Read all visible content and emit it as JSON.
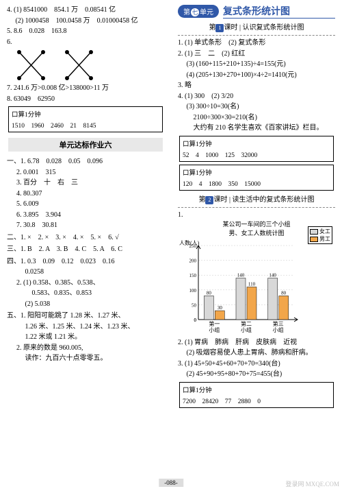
{
  "leftCol": {
    "top": [
      "4. (1) 8541000　854.1 万　0.08541 亿",
      "　 (2) 1000458　100.0458 万　0.01000458 亿",
      "5. 8.6　0.028　163.8",
      "6."
    ],
    "afterCross": [
      "7. 241.6 万>0.008 亿>138000>11 万",
      "8. 63049　62950"
    ],
    "box1": {
      "title": "口算1分钟",
      "vals": "1510　1960　2460　21　8145"
    },
    "unitBar": "单元达标作业六",
    "sec1": {
      "head": "一、",
      "items": [
        "1. 6.78　0.028　0.05　0.096",
        "2. 0.001　315",
        "3. 百分　十　右　三",
        "4. 80.307",
        "5. 6.009",
        "6. 3.895　3.904",
        "7. 30.8　30.81"
      ]
    },
    "sec2": "二、1. ×　2. ×　3. ×　4. ×　5. ×　6. √",
    "sec3": "三、1. B　2. A　3. B　4. C　5. A　6. C",
    "sec4": {
      "head": "四、",
      "items": [
        "1. 0.3　0.09　0.12　0.023　0.16",
        "　 0.0258",
        "2. (1) 0.358、0.385、0.538、",
        "　　 0.583、0.835、0.853",
        "　 (2) 5.038"
      ]
    },
    "sec5": {
      "head": "五、",
      "items": [
        "1. 阳阳可能跳了 1.28 米、1.27 米、",
        "　 1.26 米、1.25 米、1.24 米、1.23 米、",
        "　 1.22 米或 1.21 米。",
        "2. 原来的数是 960.005,",
        "　 读作：九百六十点零零五。"
      ]
    }
  },
  "rightCol": {
    "unitPill": {
      "pre": "第",
      "num": "七",
      "post": "单元"
    },
    "unitTitle": "复式条形统计图",
    "lesson1": {
      "pre": "第",
      "num": "1",
      "mid": "课时",
      "title": "认识复式条形统计图"
    },
    "q1": [
      "1. (1) 单式条形　(2) 复式条形",
      "2. (1) 三　二　(2) 红红",
      "　 (3) (160+115+210+135)÷4=155(元)",
      "　 (4) (205+130+270+100)×4÷2=1410(元)",
      "3. 略",
      "4. (1) 300　(2) 3/20",
      "　 (3) 300÷10=30(名)",
      "　　 2100÷300×30=210(名)",
      "　　 大约有 210 名学生喜欢《百家讲坛》栏目。"
    ],
    "boxA": {
      "title": "口算1分钟",
      "vals": "52　4　1000　125　32000"
    },
    "boxB": {
      "title": "口算1分钟",
      "vals": "120　4　1800　350　15000"
    },
    "lesson2": {
      "pre": "第",
      "num": "2",
      "mid": "课时",
      "title": "读生活中的复式条形统计图"
    },
    "chart": {
      "title1": "某公司一车间的三个小组",
      "title2": "男、女工人数统计图",
      "ylabel": "人数(人)",
      "ymax": 250,
      "ytick": 50,
      "groups": [
        "第一小组",
        "第二小组",
        "第三小组"
      ],
      "female": [
        80,
        140,
        140
      ],
      "male": [
        30,
        110,
        80
      ],
      "labels_female": [
        "80",
        "140",
        "140"
      ],
      "labels_male": [
        "30",
        "110",
        "80"
      ],
      "color_female": "#d8d8d8",
      "color_male": "#f2a64a",
      "axis_color": "#000000",
      "grid_color": "#c8c8c8",
      "bg": "#ffffff",
      "legend": [
        {
          "label": "女工",
          "color": "#d8d8d8"
        },
        {
          "label": "男工",
          "color": "#f2a64a"
        }
      ]
    },
    "afterChart": [
      "2. (1) 胃病　肺病　肝病　皮肤病　近视",
      "　 (2) 吸烟容易使人患上胃病、肺病和肝病。",
      "3. (1) 45+50+45+60+70+70=340(台)",
      "　 (2) 45+90+95+80+70+75=455(台)"
    ],
    "boxC": {
      "title": "口算1分钟",
      "vals": "7200　28420　77　2880　0"
    }
  },
  "pageNum": "-088-",
  "watermark": "登录网\nMXQE.COM"
}
